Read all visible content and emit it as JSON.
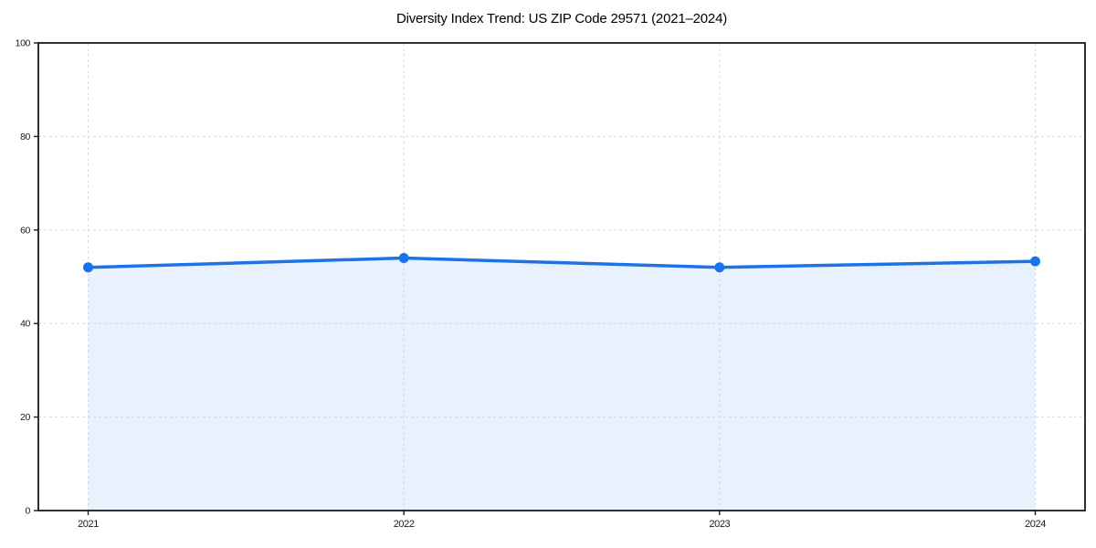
{
  "page": {
    "background_color": "#ffffff"
  },
  "chart_data": {
    "type": "area",
    "title": "Diversity Index Trend: US ZIP Code 29571 (2021–2024)",
    "categories": [
      "2021",
      "2022",
      "2023",
      "2024"
    ],
    "series": [
      {
        "name": "Diversity Index",
        "values": [
          52,
          54,
          52,
          53.3
        ]
      }
    ],
    "xlabel": "",
    "ylabel": "",
    "ylim": [
      0,
      100
    ],
    "yticks": [
      0,
      20,
      40,
      60,
      80,
      100
    ],
    "grid": {
      "visible": true,
      "style": "dashed",
      "axes": "both"
    },
    "legend_position": "none",
    "marker": "circle",
    "colors": {
      "line": "#1a73e8",
      "marker": "#1a73e8",
      "fill": "rgba(26,115,232,0.10)",
      "grid": "#d9d9d9",
      "spine": "#1a1a1a",
      "tick_label": "#1a1a1a",
      "title": "#000000"
    }
  }
}
